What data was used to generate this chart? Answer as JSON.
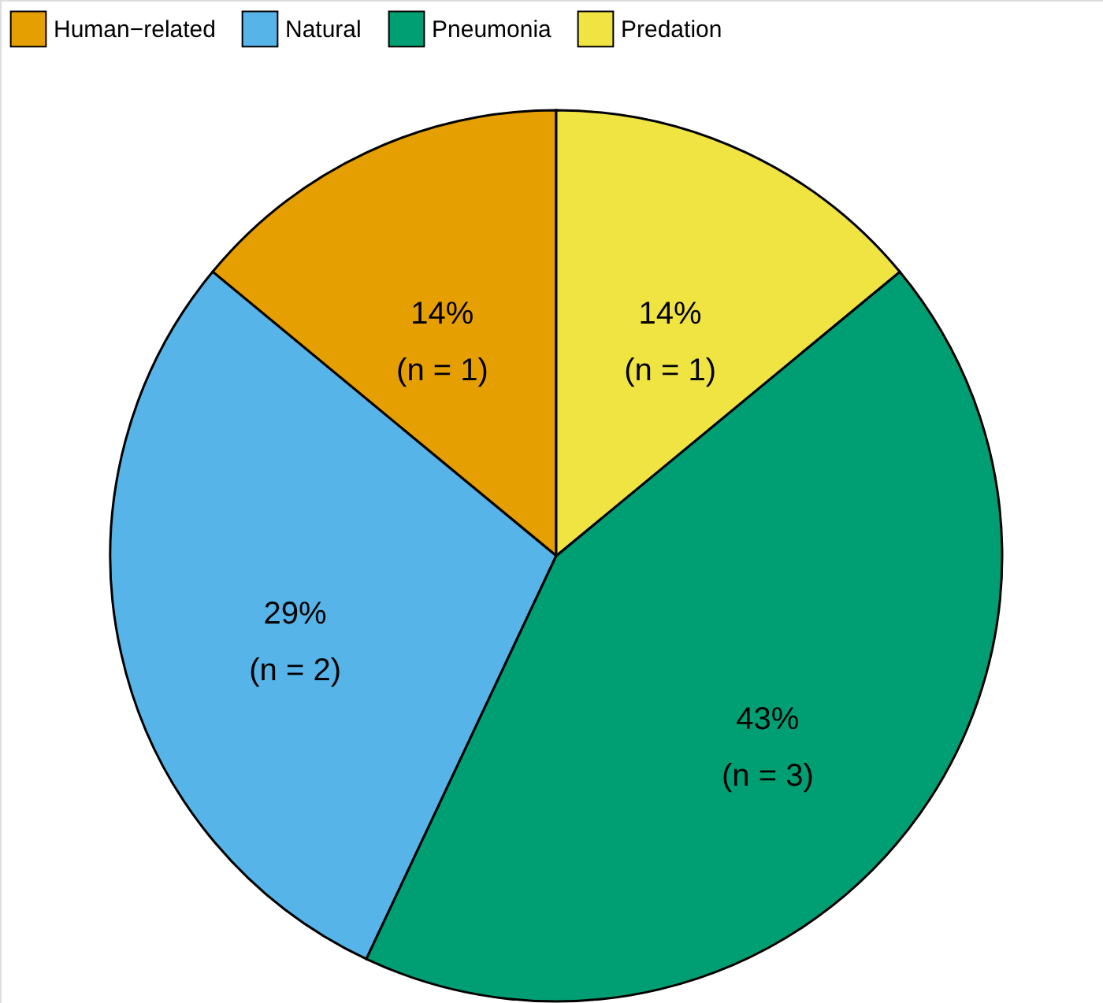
{
  "chart_data": {
    "type": "pie",
    "categories": [
      "Human−related",
      "Natural",
      "Pneumonia",
      "Predation"
    ],
    "values": [
      14,
      29,
      43,
      14
    ],
    "colors": [
      "#e69f00",
      "#56b4e9",
      "#009e73",
      "#f0e442"
    ],
    "value_labels": [
      "14%\n(n = 1)",
      "29%\n(n = 2)",
      "43%\n(n = 3)",
      "14%\n(n = 1)"
    ],
    "legend": "top"
  }
}
